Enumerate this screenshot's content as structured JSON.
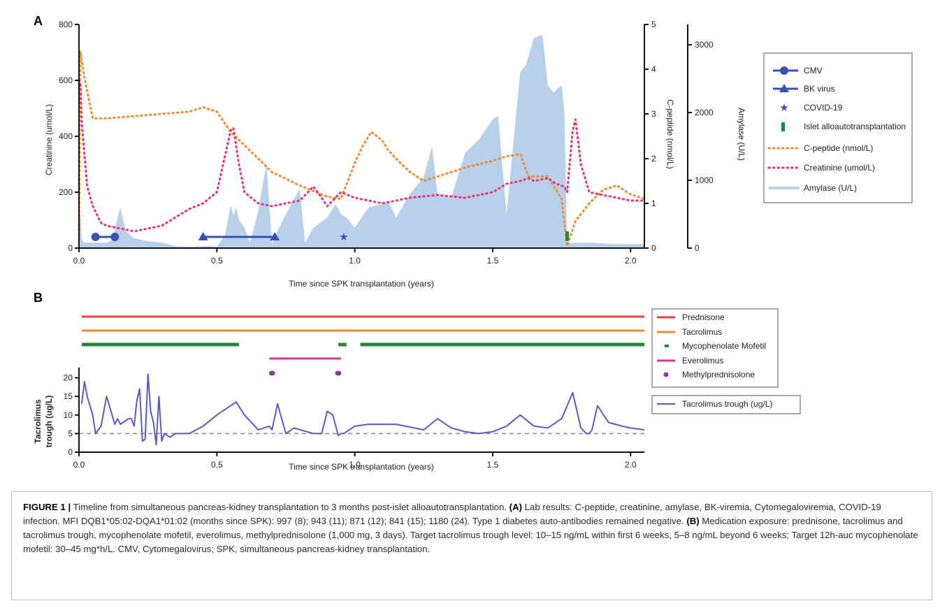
{
  "colors": {
    "blue": "#3a4fb4",
    "amylase": "#b9d0ea",
    "orange": "#f08a2e",
    "pink": "#e8336f",
    "red": "#e8403a",
    "green": "#1f8a3a",
    "magenta": "#e33588",
    "purple": "#8c3a9a",
    "trough": "#5b5bbf",
    "dash": "#888888"
  },
  "panel_a": {
    "label": "A"
  },
  "panel_b": {
    "label": "B"
  },
  "caption": {
    "figure_label": "FIGURE 1 |",
    "intro": " Timeline from simultaneous pancreas-kidney transplantation to 3 months post-islet alloautotransplantation. ",
    "a_label": "(A)",
    "a_text": " Lab results: C-peptide, creatinine, amylase, BK-viremia, Cytomegaloviremia, COVID-19 infection. MFI DQB1*05:02-DQA1*01:02 (months since SPK): 997 (8); 943 (11); 871 (12); 841 (15); 1180 (24). Type 1 diabetes auto-antibodies remained negative. ",
    "b_label": "(B)",
    "b_text": " Medication exposure: prednisone, tacrolimus and tacrolimus trough, mycophenolate mofetil, everolimus, methylprednisolone (1,000 mg, 3 days). Target tacrolimus trough level: 10–15 ng/mL within first 6 weeks, 5–8 ng/mL beyond 6 weeks; Target 12h-auc mycophenolate mofetil: 30–45 mg*h/L. CMV, Cytomegalovirus; SPK, simultaneous pancreas-kidney transplantation."
  },
  "chart_data": [
    {
      "type": "line",
      "panel": "A",
      "xlabel": "Time since SPK transplantation (years)",
      "x_ticks": [
        "0.0",
        "0.5",
        "1.0",
        "1.5",
        "2.0"
      ],
      "xlim": [
        0,
        2.05
      ],
      "y_axes": [
        {
          "name": "left",
          "label": "Creatinine (umol/L)",
          "ylim": [
            0,
            800
          ],
          "ticks": [
            "0",
            "200",
            "400",
            "600",
            "800"
          ]
        },
        {
          "name": "middle",
          "label": "C-peptide (nmol/L)",
          "ylim": [
            0,
            5
          ],
          "ticks": [
            "0",
            "1",
            "2",
            "3",
            "4",
            "5"
          ]
        },
        {
          "name": "right",
          "label": "Amylase (U/L)",
          "ylim": [
            0,
            3300
          ],
          "ticks": [
            "0",
            "1000",
            "2000",
            "3000"
          ]
        }
      ],
      "legend_position": "right",
      "legend": [
        {
          "name": "CMV",
          "marker": "circle"
        },
        {
          "name": "BK virus",
          "marker": "triangle"
        },
        {
          "name": "COVID-19",
          "marker": "star"
        },
        {
          "name": "Islet alloautotransplantation",
          "marker": "bar"
        },
        {
          "name": "C-peptide (nmol/L)",
          "marker": "dotted-orange"
        },
        {
          "name": "Creatinine (umol/L)",
          "marker": "dotted-pink"
        },
        {
          "name": "Amylase (U/L)",
          "marker": "area"
        }
      ],
      "series": [
        {
          "name": "Amylase (U/L)",
          "axis": "right",
          "x": [
            0,
            0.005,
            0.01,
            0.02,
            0.05,
            0.1,
            0.12,
            0.15,
            0.17,
            0.2,
            0.25,
            0.3,
            0.35,
            0.4,
            0.45,
            0.48,
            0.5,
            0.53,
            0.55,
            0.56,
            0.57,
            0.58,
            0.6,
            0.62,
            0.65,
            0.68,
            0.7,
            0.72,
            0.75,
            0.8,
            0.82,
            0.85,
            0.9,
            0.93,
            0.95,
            0.97,
            1.0,
            1.05,
            1.1,
            1.12,
            1.15,
            1.2,
            1.25,
            1.28,
            1.3,
            1.35,
            1.4,
            1.45,
            1.5,
            1.52,
            1.55,
            1.6,
            1.62,
            1.65,
            1.68,
            1.7,
            1.72,
            1.75,
            1.76,
            1.77,
            1.8,
            1.85,
            1.9,
            1.95,
            2.0,
            2.05
          ],
          "values": [
            0,
            600,
            120,
            80,
            80,
            80,
            120,
            600,
            250,
            150,
            100,
            80,
            30,
            20,
            30,
            30,
            20,
            200,
            630,
            480,
            600,
            420,
            300,
            80,
            550,
            1250,
            50,
            250,
            500,
            880,
            80,
            300,
            450,
            650,
            500,
            450,
            300,
            600,
            650,
            700,
            450,
            800,
            1050,
            1500,
            800,
            750,
            1400,
            1600,
            1900,
            1950,
            500,
            2600,
            2700,
            3100,
            3150,
            2400,
            2300,
            2400,
            2000,
            70,
            80,
            80,
            70,
            60,
            60,
            60
          ]
        },
        {
          "name": "C-peptide (nmol/L)",
          "axis": "middle",
          "x": [
            0,
            0.005,
            0.01,
            0.02,
            0.05,
            0.1,
            0.2,
            0.3,
            0.4,
            0.45,
            0.5,
            0.55,
            0.6,
            0.7,
            0.8,
            0.9,
            0.95,
            1.0,
            1.03,
            1.06,
            1.1,
            1.12,
            1.15,
            1.2,
            1.25,
            1.3,
            1.4,
            1.5,
            1.55,
            1.6,
            1.63,
            1.65,
            1.7,
            1.75,
            1.77,
            1.8,
            1.85,
            1.9,
            1.95,
            2.0,
            2.05
          ],
          "values": [
            0.2,
            4.4,
            4.2,
            3.8,
            2.9,
            2.9,
            2.95,
            3,
            3.05,
            3.15,
            3.05,
            2.6,
            2.3,
            1.7,
            1.4,
            1.15,
            1.1,
            1.9,
            2.3,
            2.6,
            2.4,
            2.2,
            2,
            1.7,
            1.5,
            1.6,
            1.8,
            1.95,
            2.05,
            2.1,
            1.6,
            1.6,
            1.6,
            1.1,
            0.05,
            0.6,
            1,
            1.3,
            1.4,
            1.2,
            1.1
          ]
        },
        {
          "name": "Creatinine (umol/L)",
          "axis": "left",
          "x": [
            0,
            0.005,
            0.01,
            0.03,
            0.05,
            0.08,
            0.1,
            0.15,
            0.2,
            0.3,
            0.4,
            0.45,
            0.5,
            0.55,
            0.56,
            0.58,
            0.6,
            0.65,
            0.7,
            0.75,
            0.8,
            0.85,
            0.88,
            0.9,
            0.95,
            1.0,
            1.05,
            1.1,
            1.2,
            1.3,
            1.4,
            1.5,
            1.55,
            1.6,
            1.63,
            1.65,
            1.7,
            1.73,
            1.76,
            1.77,
            1.79,
            1.8,
            1.82,
            1.85,
            1.9,
            1.95,
            2.0,
            2.05
          ],
          "values": [
            600,
            590,
            450,
            220,
            150,
            90,
            80,
            70,
            60,
            80,
            140,
            160,
            200,
            420,
            430,
            300,
            200,
            160,
            150,
            160,
            170,
            220,
            180,
            150,
            200,
            180,
            170,
            160,
            180,
            190,
            180,
            200,
            230,
            240,
            250,
            240,
            250,
            230,
            220,
            200,
            420,
            460,
            300,
            200,
            190,
            180,
            170,
            170
          ]
        }
      ],
      "events": [
        {
          "name": "CMV",
          "x_start": 0.06,
          "x_end": 0.13,
          "y_creatinine": 40
        },
        {
          "name": "BK virus",
          "x_start": 0.45,
          "x_end": 0.71,
          "y_creatinine": 40
        },
        {
          "name": "COVID-19",
          "x": 0.96,
          "y_creatinine": 40
        },
        {
          "name": "Islet alloautotransplantation",
          "x": 1.77,
          "y_creatinine": 40
        }
      ]
    },
    {
      "type": "line",
      "panel": "B",
      "xlabel": "Time since SPK transplantation (years)",
      "ylabel": "Tacrolimus trough (ug/L)",
      "ylabel_lines": [
        "Tacrolimus",
        "trough (ug/L)"
      ],
      "x_ticks": [
        "0.0",
        "0.5",
        "1.0",
        "1.5",
        "2.0"
      ],
      "xlim": [
        0,
        2.05
      ],
      "y_ticks": [
        "0",
        "5",
        "10",
        "15",
        "20"
      ],
      "ylim": [
        0,
        22
      ],
      "target_line": 5,
      "legend_position": "right",
      "medications": [
        {
          "name": "Prednisone",
          "periods": [
            [
              0.01,
              2.05
            ]
          ]
        },
        {
          "name": "Tacrolimus",
          "periods": [
            [
              0.01,
              2.05
            ]
          ]
        },
        {
          "name": "Mycophenolate Mofetil",
          "periods": [
            [
              0.01,
              0.58
            ],
            [
              0.94,
              0.97
            ],
            [
              1.02,
              2.05
            ]
          ]
        },
        {
          "name": "Everolimus",
          "periods": [
            [
              0.69,
              0.95
            ]
          ]
        },
        {
          "name": "Methylprednisolone",
          "points": [
            0.7,
            0.94
          ]
        }
      ],
      "series": [
        {
          "name": "Tacrolimus trough (ug/L)",
          "x": [
            0.01,
            0.02,
            0.03,
            0.05,
            0.06,
            0.08,
            0.1,
            0.12,
            0.13,
            0.14,
            0.15,
            0.16,
            0.18,
            0.19,
            0.2,
            0.21,
            0.22,
            0.23,
            0.24,
            0.25,
            0.26,
            0.27,
            0.28,
            0.29,
            0.3,
            0.31,
            0.33,
            0.35,
            0.4,
            0.45,
            0.5,
            0.57,
            0.6,
            0.65,
            0.69,
            0.7,
            0.72,
            0.75,
            0.78,
            0.85,
            0.88,
            0.9,
            0.92,
            0.94,
            0.95,
            0.96,
            1.0,
            1.05,
            1.15,
            1.25,
            1.3,
            1.35,
            1.4,
            1.45,
            1.5,
            1.55,
            1.6,
            1.65,
            1.7,
            1.75,
            1.79,
            1.82,
            1.84,
            1.85,
            1.86,
            1.88,
            1.92,
            1.97,
            2.0,
            2.05
          ],
          "values": [
            13,
            19,
            15,
            10,
            5,
            7,
            15,
            10,
            7.5,
            9,
            7.5,
            8,
            9,
            9,
            7,
            14,
            17,
            3,
            3.5,
            21,
            11,
            8,
            2,
            15,
            3,
            5,
            4,
            5,
            5,
            7,
            10,
            13.5,
            10,
            6,
            7,
            6,
            13,
            5,
            6.5,
            5,
            5,
            11,
            10,
            4.5,
            5,
            5,
            7,
            7.5,
            7.5,
            6,
            9,
            6.5,
            5.5,
            5,
            5.5,
            7,
            10,
            7,
            6.5,
            9,
            16,
            6.5,
            5,
            5,
            6,
            12.5,
            8,
            7,
            6.5,
            6
          ]
        }
      ]
    }
  ]
}
